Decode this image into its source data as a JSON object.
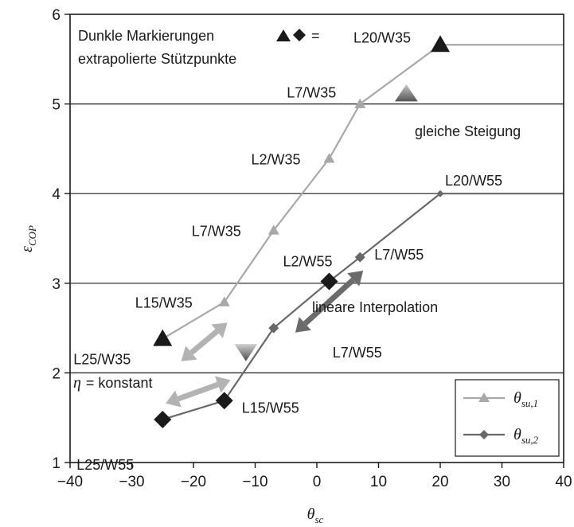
{
  "chart_data": {
    "type": "line",
    "xlabel": "θsc",
    "ylabel": "εCOP",
    "xlim": [
      -40,
      40
    ],
    "ylim": [
      1,
      6
    ],
    "x_ticks": [
      "−40",
      "−30",
      "−20",
      "−10",
      "0",
      "10",
      "20",
      "30",
      "40"
    ],
    "y_ticks": [
      "1",
      "2",
      "3",
      "4",
      "5",
      "6"
    ],
    "grid": "horizontal",
    "legend_position": "bottom-right",
    "series": [
      {
        "name": "θsu,1",
        "legend_main": "θ",
        "legend_sub": "su,1",
        "color": "#a8a8a8",
        "marker": "triangle",
        "points": [
          {
            "x": -25,
            "y": 2.38,
            "label": "L25/W35",
            "extrapolated": true
          },
          {
            "x": -15,
            "y": 2.79,
            "label": "L15/W35",
            "extrapolated": false
          },
          {
            "x": -7,
            "y": 3.59,
            "label": "L7/W35",
            "extrapolated": false
          },
          {
            "x": 2,
            "y": 4.39,
            "label": "L2/W35",
            "extrapolated": false
          },
          {
            "x": 7,
            "y": 5.0,
            "label": "L7/W35",
            "extrapolated": false
          },
          {
            "x": 20,
            "y": 5.66,
            "label": "L20/W35",
            "extrapolated": true
          }
        ],
        "extension_to": {
          "x": 40,
          "y": 5.66
        }
      },
      {
        "name": "θsu,2",
        "legend_main": "θ",
        "legend_sub": "su,2",
        "color": "#686868",
        "marker": "diamond",
        "points": [
          {
            "x": -25,
            "y": 1.48,
            "label": "L25/W55",
            "extrapolated": true
          },
          {
            "x": -15,
            "y": 1.69,
            "label": "L15/W55",
            "extrapolated": true
          },
          {
            "x": -7,
            "y": 2.5,
            "label": "",
            "extrapolated": false
          },
          {
            "x": 2,
            "y": 3.02,
            "label": "L2/W55",
            "extrapolated": true
          },
          {
            "x": 7,
            "y": 3.29,
            "label": "L7/W55",
            "extrapolated": false
          },
          {
            "x": 20,
            "y": 4.0,
            "label": "L20/W55",
            "extrapolated": false
          }
        ],
        "extension_to": {
          "x": 40,
          "y": 4.0
        }
      }
    ],
    "extra_labels": [
      {
        "text": "L7/W55",
        "x": -7,
        "y": 2.5
      }
    ],
    "annotations": {
      "legend_note_line1": "Dunkle Markierungen",
      "legend_note_eq": "=",
      "legend_note_line2": "extrapolierte Stützpunkte",
      "same_slope": "gleiche Steigung",
      "linear_interp": "lineare Interpolation",
      "eta_symbol": "η",
      "eta_const": "= konstant"
    }
  }
}
